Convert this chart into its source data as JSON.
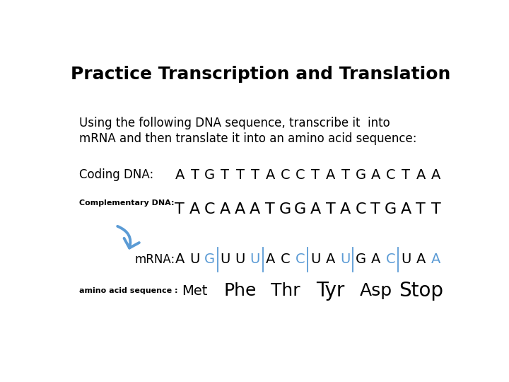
{
  "title": "Practice Transcription and Translation",
  "subtitle_line1": "Using the following DNA sequence, transcribe it  into",
  "subtitle_line2": "mRNA and then translate it into an amino acid sequence:",
  "coding_dna_label": "Coding DNA:",
  "coding_dna_seq": [
    "A",
    "T",
    "G",
    "T",
    "T",
    "T",
    "A",
    "C",
    "C",
    "T",
    "A",
    "T",
    "G",
    "A",
    "C",
    "T",
    "A",
    "A"
  ],
  "comp_dna_label": "Complementary DNA:",
  "comp_dna_seq": [
    "T",
    "A",
    "C",
    "A",
    "A",
    "A",
    "T",
    "G",
    "G",
    "A",
    "T",
    "A",
    "C",
    "T",
    "G",
    "A",
    "T",
    "T"
  ],
  "mrna_label": "mRNA:",
  "mrna_seq": [
    "A",
    "U",
    "G",
    "U",
    "U",
    "U",
    "A",
    "C",
    "C",
    "U",
    "A",
    "U",
    "G",
    "A",
    "C",
    "U",
    "A",
    "A"
  ],
  "mrna_blue_indices": [
    2,
    5,
    8,
    11,
    14,
    17
  ],
  "amino_label": "amino acid sequence :",
  "amino_acids": [
    "Met",
    "Phe",
    "Thr",
    "Tyr",
    "Asp",
    "Stop"
  ],
  "divider_after_indices": [
    2,
    5,
    8,
    11,
    14
  ],
  "bg_color": "#ffffff",
  "text_color": "#000000",
  "blue_color": "#5b9bd5",
  "title_fontsize": 18,
  "body_fontsize": 12,
  "seq_fontsize": 14,
  "comp_seq_fontsize": 16,
  "amino_fontsize": 16,
  "small_label_fontsize": 8
}
